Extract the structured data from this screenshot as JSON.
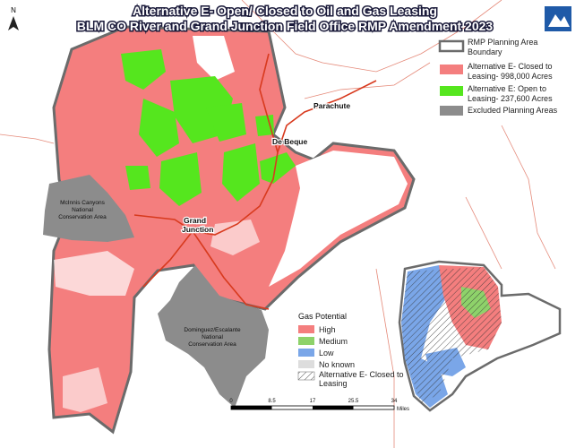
{
  "header": {
    "title_lines": [
      "Alternative E- Open/ Closed to Oil and Gas Leasing",
      "BLM CO River and Grand Junction Field Office RMP Amendment 2023"
    ]
  },
  "compass": "N",
  "legend": {
    "items": [
      {
        "lines": [
          "RMP Planning Area",
          "Boundary"
        ]
      },
      {
        "lines": [
          "Alternative E- Closed to",
          "Leasing- 998,000 Acres"
        ]
      },
      {
        "lines": [
          "Alternative E: Open to",
          "Leasing- 237,600 Acres"
        ]
      },
      {
        "lines": [
          "Excluded Planning Areas"
        ]
      }
    ]
  },
  "places": {
    "parachute": "Parachute",
    "de_beque": "De Beque",
    "grand_junction": [
      "Grand",
      "Junction"
    ],
    "mcinnis": [
      "McInnis Canyons",
      "National",
      "Conservation Area"
    ],
    "dominguez": [
      "Dominguez/Escalante",
      "National",
      "Conservation Area"
    ]
  },
  "gas_legend": {
    "title": "Gas Potential",
    "items": [
      "High",
      "Medium",
      "Low",
      "No known"
    ],
    "hatch": [
      "Alternative E- Closed to",
      "Leasing"
    ]
  },
  "scale_bar": {
    "ticks": [
      0,
      8.5,
      17,
      25.5,
      34
    ],
    "unit": "Miles"
  }
}
